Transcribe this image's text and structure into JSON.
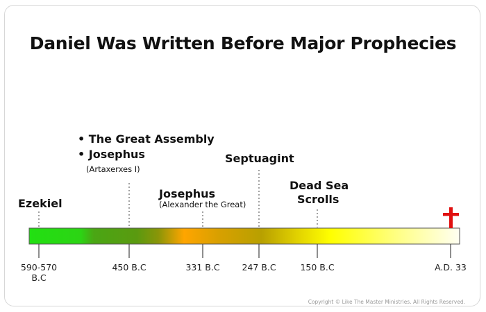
{
  "title": "Daniel Was Written Before Major Prophecies",
  "colors": {
    "bar_start": "#22e012",
    "bar_mid_green": "#5a9a10",
    "bar_orange": "#ffa500",
    "bar_olive": "#b8a000",
    "bar_yellow": "#ffff00",
    "bar_end": "#fffff2",
    "cross": "#e01010"
  },
  "timeline": {
    "ticks": [
      {
        "label": "590-570\nB.C"
      },
      {
        "label": "450 B.C"
      },
      {
        "label": "331 B.C"
      },
      {
        "label": "247 B.C"
      },
      {
        "label": "150 B.C"
      },
      {
        "label": "A.D. 33"
      }
    ],
    "events": {
      "ezekiel": "Ezekiel",
      "great_assembly": "• The Great Assembly",
      "josephus_1": "• Josephus",
      "josephus_1_note": "(Artaxerxes I)",
      "josephus_2": "Josephus",
      "josephus_2_note": "(Alexander the Great)",
      "septuagint": "Septuagint",
      "dead_sea_1": "Dead Sea",
      "dead_sea_2": "Scrolls"
    },
    "end_marker_icon": "cross-icon"
  },
  "copyright": "Copyright © Like The Master Ministries. All Rights Reserved."
}
